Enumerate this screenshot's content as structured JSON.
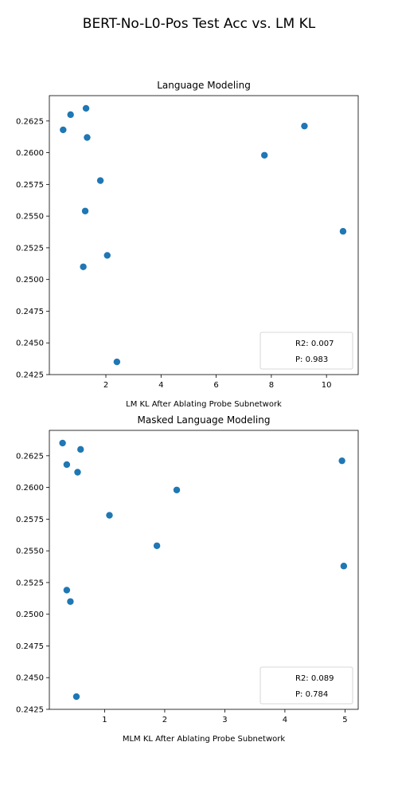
{
  "figure": {
    "title": "BERT-No-L0-Pos Test Acc vs. LM KL"
  },
  "chart_data": [
    {
      "type": "scatter",
      "title": "Language Modeling",
      "xlabel": "LM KL After Ablating Probe Subnetwork",
      "ylabel": "",
      "xlim": [
        -0.05,
        11.15
      ],
      "ylim": [
        0.2425,
        0.2645
      ],
      "xticks": [
        2,
        4,
        6,
        8,
        10
      ],
      "xtick_labels": [
        "2",
        "4",
        "6",
        "8",
        "10"
      ],
      "yticks": [
        0.2425,
        0.245,
        0.2475,
        0.25,
        0.2525,
        0.255,
        0.2575,
        0.26,
        0.2625
      ],
      "ytick_labels": [
        "0.2425",
        "0.2450",
        "0.2475",
        "0.2500",
        "0.2525",
        "0.2550",
        "0.2575",
        "0.2600",
        "0.2625"
      ],
      "color": "#1f77b4",
      "x": [
        0.45,
        0.72,
        1.28,
        1.32,
        9.2,
        7.75,
        1.8,
        1.25,
        10.6,
        2.05,
        1.18,
        2.4
      ],
      "y": [
        0.2618,
        0.263,
        0.2635,
        0.2612,
        0.2621,
        0.2598,
        0.2578,
        0.2554,
        0.2538,
        0.2519,
        0.251,
        0.2435
      ],
      "legend": {
        "r2": "R2: 0.007",
        "p": "P: 0.983",
        "placement": "lower-right"
      }
    },
    {
      "type": "scatter",
      "title": "Masked Language Modeling",
      "xlabel": "MLM KL After Ablating Probe Subnetwork",
      "ylabel": "",
      "xlim": [
        0.08,
        5.22
      ],
      "ylim": [
        0.2425,
        0.2645
      ],
      "xticks": [
        1,
        2,
        3,
        4,
        5
      ],
      "xtick_labels": [
        "1",
        "2",
        "3",
        "4",
        "5"
      ],
      "yticks": [
        0.2425,
        0.245,
        0.2475,
        0.25,
        0.2525,
        0.255,
        0.2575,
        0.26,
        0.2625
      ],
      "ytick_labels": [
        "0.2425",
        "0.2450",
        "0.2475",
        "0.2500",
        "0.2525",
        "0.2550",
        "0.2575",
        "0.2600",
        "0.2625"
      ],
      "color": "#1f77b4",
      "x": [
        0.3,
        0.6,
        0.37,
        0.55,
        4.95,
        2.2,
        1.08,
        1.87,
        4.98,
        0.37,
        0.43,
        0.53
      ],
      "y": [
        0.2635,
        0.263,
        0.2618,
        0.2612,
        0.2621,
        0.2598,
        0.2578,
        0.2554,
        0.2538,
        0.2519,
        0.251,
        0.2435
      ],
      "legend": {
        "r2": "R2: 0.089",
        "p": "P: 0.784",
        "placement": "lower-right"
      }
    }
  ]
}
